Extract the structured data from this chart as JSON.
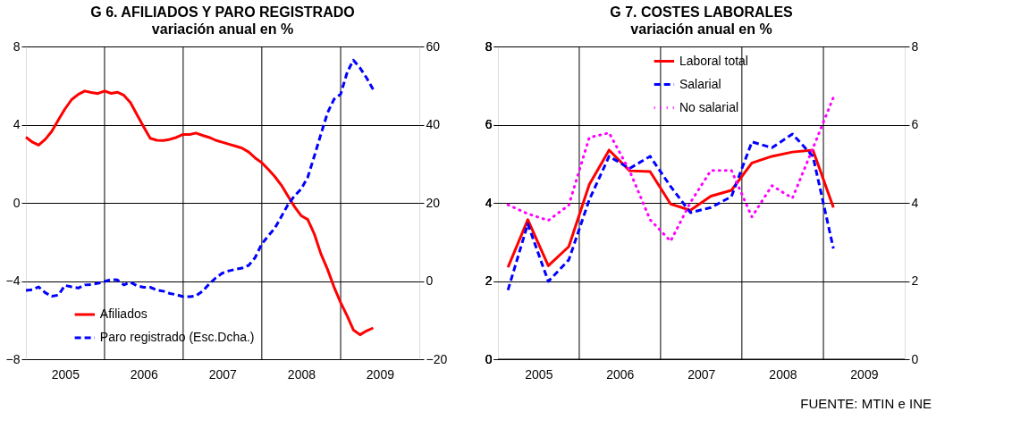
{
  "chart_data": [
    {
      "type": "line",
      "title": "G 6. AFILIADOS Y PARO REGISTRADO",
      "subtitle": "variación anual en %",
      "x": [
        "2005-01",
        "2005-02",
        "2005-03",
        "2005-04",
        "2005-05",
        "2005-06",
        "2005-07",
        "2005-08",
        "2005-09",
        "2005-10",
        "2005-11",
        "2005-12",
        "2006-01",
        "2006-02",
        "2006-03",
        "2006-04",
        "2006-05",
        "2006-06",
        "2006-07",
        "2006-08",
        "2006-09",
        "2006-10",
        "2006-11",
        "2006-12",
        "2007-01",
        "2007-02",
        "2007-03",
        "2007-04",
        "2007-05",
        "2007-06",
        "2007-07",
        "2007-08",
        "2007-09",
        "2007-10",
        "2007-11",
        "2007-12",
        "2008-01",
        "2008-02",
        "2008-03",
        "2008-04",
        "2008-05",
        "2008-06",
        "2008-07",
        "2008-08",
        "2008-09",
        "2008-10",
        "2008-11",
        "2008-12",
        "2009-01",
        "2009-02",
        "2009-03",
        "2009-04",
        "2009-05",
        "2009-06"
      ],
      "series": [
        {
          "name": "Afiliados",
          "color": "#ff0000",
          "line_style": "solid",
          "values": [
            3.36,
            3.1,
            2.95,
            3.25,
            3.66,
            4.25,
            4.8,
            5.28,
            5.55,
            5.72,
            5.65,
            5.59,
            5.72,
            5.6,
            5.66,
            5.5,
            5.13,
            4.5,
            3.9,
            3.3,
            3.2,
            3.19,
            3.25,
            3.35,
            3.5,
            3.5,
            3.57,
            3.45,
            3.35,
            3.2,
            3.1,
            3.0,
            2.9,
            2.8,
            2.6,
            2.3,
            2.05,
            1.7,
            1.35,
            0.9,
            0.35,
            -0.2,
            -0.65,
            -0.85,
            -1.6,
            -2.6,
            -3.4,
            -4.3,
            -5.1,
            -5.8,
            -6.5,
            -6.75,
            -6.55,
            -6.4
          ]
        },
        {
          "name": "Paro registrado (Esc.Dcha.)",
          "color": "#0000ff",
          "line_style": "dashed",
          "axis": "y2",
          "values": [
            -2.4,
            -2.2,
            -1.5,
            -3.0,
            -3.9,
            -3.6,
            -1.1,
            -1.5,
            -1.8,
            -1.0,
            -0.9,
            -0.6,
            -0.1,
            0.4,
            0.3,
            -1.0,
            -0.3,
            -1.2,
            -1.6,
            -1.6,
            -2.3,
            -2.6,
            -3.2,
            -3.5,
            -4.0,
            -4.0,
            -3.8,
            -2.6,
            -0.8,
            0.8,
            2.0,
            2.6,
            3.0,
            3.3,
            4.0,
            6.0,
            9.5,
            11.6,
            13.5,
            16.5,
            19.5,
            21.8,
            23.5,
            26.5,
            32,
            37.5,
            43,
            46.5,
            47.8,
            53.5,
            56.5,
            54.5,
            52,
            49
          ]
        }
      ],
      "xlim": [
        "2005-01-01",
        "2010-01-01"
      ],
      "xticks": [
        {
          "value": "2005-07-02",
          "label": "2005"
        },
        {
          "value": "2006-01-01",
          "label": null
        },
        {
          "value": "2006-07-02",
          "label": "2006"
        },
        {
          "value": "2007-01-01",
          "label": null
        },
        {
          "value": "2007-07-02",
          "label": "2007"
        },
        {
          "value": "2008-01-01",
          "label": null
        },
        {
          "value": "2008-07-02",
          "label": "2008"
        },
        {
          "value": "2009-01-01",
          "label": null
        },
        {
          "value": "2009-07-02",
          "label": "2009"
        }
      ],
      "ylim": [
        -8,
        8
      ],
      "yticks": [
        -8,
        -4,
        0,
        4,
        8
      ],
      "y2lim": [
        -20,
        60
      ],
      "y2ticks": [
        -20,
        0,
        20,
        40,
        60
      ],
      "grid": true,
      "legend": "bottom left"
    },
    {
      "type": "line",
      "title": "G 7. COSTES LABORALES",
      "subtitle": "variación anual en %",
      "x": [
        "2005-02-15",
        "2005-05-15",
        "2005-08-15",
        "2005-11-15",
        "2006-02-15",
        "2006-05-15",
        "2006-08-15",
        "2006-11-15",
        "2007-02-15",
        "2007-05-15",
        "2007-08-15",
        "2007-11-15",
        "2008-02-15",
        "2008-05-15",
        "2008-08-15",
        "2008-11-15",
        "2009-02-15"
      ],
      "series": [
        {
          "name": "Laboral total",
          "color": "#ff0000",
          "line_style": "solid",
          "values": [
            2.35,
            3.57,
            2.39,
            2.88,
            4.47,
            5.35,
            4.82,
            4.8,
            3.97,
            3.81,
            4.17,
            4.32,
            5.02,
            5.19,
            5.3,
            5.35,
            3.88
          ]
        },
        {
          "name": "Salarial",
          "color": "#0000ff",
          "line_style": "dashed",
          "values": [
            1.77,
            3.46,
            1.99,
            2.54,
            4.08,
            5.19,
            4.88,
            5.19,
            4.42,
            3.75,
            3.88,
            4.16,
            5.56,
            5.41,
            5.76,
            5.19,
            2.83
          ]
        },
        {
          "name": "No salarial",
          "color": "#ff00ff",
          "line_style": "dotted",
          "values": [
            3.95,
            3.72,
            3.55,
            3.94,
            5.67,
            5.79,
            4.82,
            3.57,
            3.02,
            4.01,
            4.83,
            4.83,
            3.64,
            4.44,
            4.12,
            5.4,
            6.7
          ]
        }
      ],
      "xlim": [
        "2005-01-01",
        "2010-01-01"
      ],
      "xticks": [
        {
          "value": "2005-07-02",
          "label": "2005"
        },
        {
          "value": "2006-01-01",
          "label": null
        },
        {
          "value": "2006-07-02",
          "label": "2006"
        },
        {
          "value": "2007-01-01",
          "label": null
        },
        {
          "value": "2007-07-02",
          "label": "2007"
        },
        {
          "value": "2008-01-01",
          "label": null
        },
        {
          "value": "2008-07-02",
          "label": "2008"
        },
        {
          "value": "2009-01-01",
          "label": null
        },
        {
          "value": "2009-07-02",
          "label": "2009"
        }
      ],
      "ylim": [
        0,
        8
      ],
      "yticks": [
        0,
        2,
        4,
        6,
        8
      ],
      "y2lim": [
        0,
        8
      ],
      "y2ticks": [
        0,
        2,
        4,
        6,
        8
      ],
      "grid": true,
      "legend": "top",
      "annotations": [
        "FUENTE: MTIN e INE"
      ]
    }
  ]
}
